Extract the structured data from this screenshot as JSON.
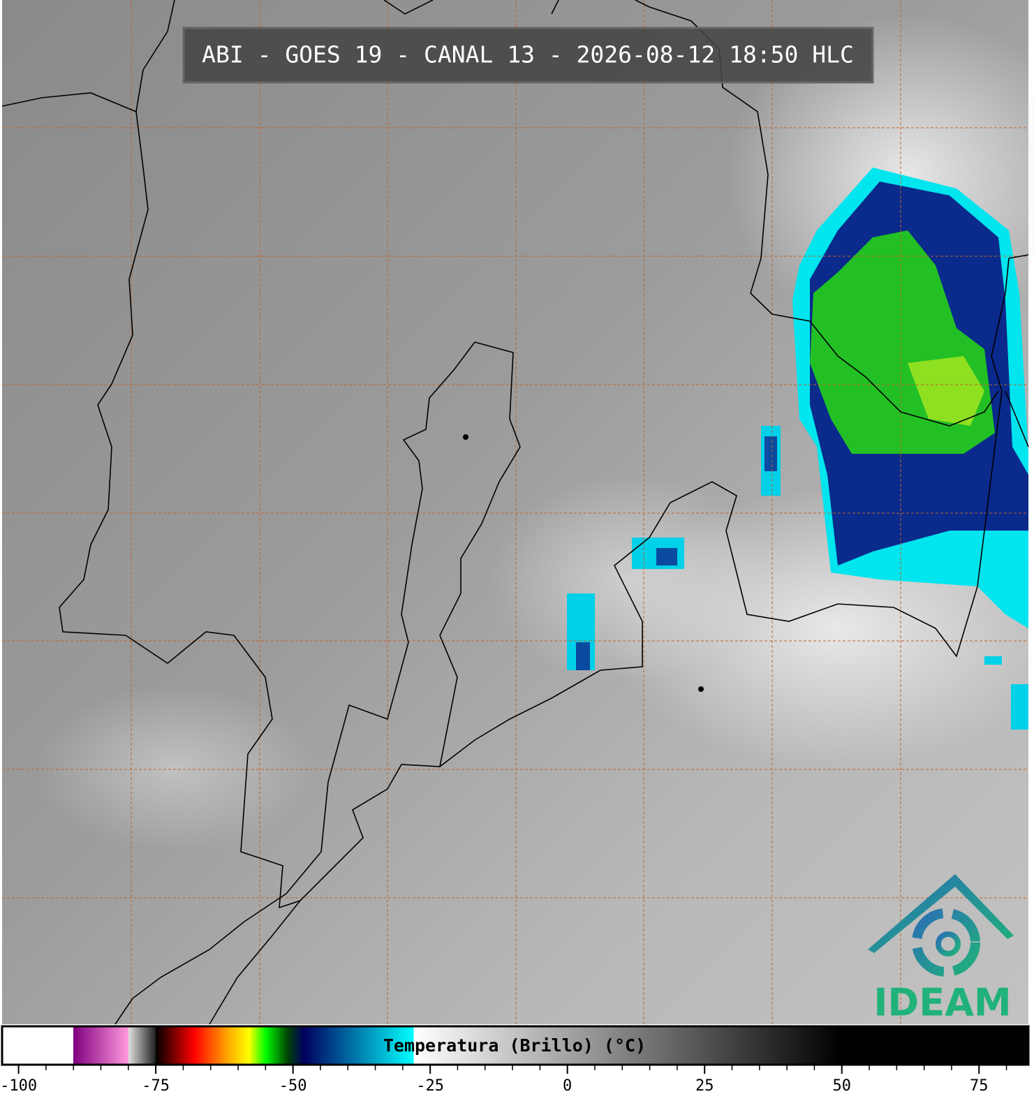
{
  "header": {
    "title": "ABI - GOES 19 - CANAL 13 - 2026-08-12 18:50 HLC"
  },
  "colorbar": {
    "label": "Temperatura (Brillo) (°C)",
    "lim": [
      -103,
      84
    ],
    "ticks": [
      -100,
      -75,
      -50,
      -25,
      0,
      25,
      50,
      75
    ],
    "minor_ticks": [
      -95,
      -90,
      -85,
      -80,
      -70,
      -65,
      -60,
      -55,
      -45,
      -40,
      -35,
      -30,
      -20,
      -15,
      -10,
      -5,
      5,
      10,
      15,
      20,
      30,
      35,
      40,
      45,
      55,
      60,
      65,
      70,
      80
    ],
    "colormap": [
      [
        -103,
        "#ffffff"
      ],
      [
        -90,
        "#ffffff"
      ],
      [
        -90,
        "#800080"
      ],
      [
        -80,
        "#ff99dd"
      ],
      [
        -80,
        "#e0e0e0"
      ],
      [
        -75,
        "#202020"
      ],
      [
        -75,
        "#000000"
      ],
      [
        -68,
        "#ff0000"
      ],
      [
        -62,
        "#ffa500"
      ],
      [
        -58,
        "#ffff00"
      ],
      [
        -55,
        "#00ff00"
      ],
      [
        -51,
        "#004400"
      ],
      [
        -48,
        "#000060"
      ],
      [
        -28,
        "#00ffff"
      ],
      [
        -28,
        "#ffffff"
      ],
      [
        50,
        "#000000"
      ],
      [
        84,
        "#000000"
      ]
    ]
  },
  "logo": {
    "text": "IDEAM"
  }
}
